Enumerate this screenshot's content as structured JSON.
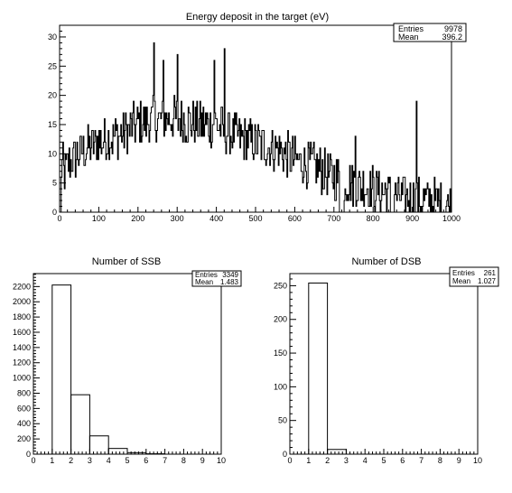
{
  "chart_data": [
    {
      "id": "energy",
      "type": "line",
      "title": "Energy deposit in the target (eV)",
      "xlabel": "",
      "ylabel": "",
      "xlim": [
        0,
        1000
      ],
      "ylim": [
        0,
        32
      ],
      "xticks": [
        0,
        100,
        200,
        300,
        400,
        500,
        600,
        700,
        800,
        900,
        1000
      ],
      "yticks": [
        0,
        5,
        10,
        15,
        20,
        25,
        30
      ],
      "stats": {
        "entries_label": "Entries",
        "entries": "9978",
        "mean_label": "Mean",
        "mean": "396.2"
      },
      "profile": [
        [
          0,
          4
        ],
        [
          20,
          8
        ],
        [
          50,
          10
        ],
        [
          100,
          12
        ],
        [
          150,
          13
        ],
        [
          200,
          15
        ],
        [
          250,
          16
        ],
        [
          300,
          16
        ],
        [
          350,
          15
        ],
        [
          400,
          15
        ],
        [
          450,
          13
        ],
        [
          500,
          12
        ],
        [
          550,
          11
        ],
        [
          600,
          9
        ],
        [
          650,
          8
        ],
        [
          700,
          6
        ],
        [
          750,
          5
        ],
        [
          800,
          4
        ],
        [
          850,
          3
        ],
        [
          900,
          2
        ],
        [
          950,
          2
        ],
        [
          1000,
          1
        ]
      ],
      "noise_amp": 4,
      "zero_bins": [
        [
          0,
          2
        ],
        [
          715,
          725
        ],
        [
          845,
          852
        ]
      ],
      "peaks": [
        [
          8,
          12
        ],
        [
          240,
          29
        ],
        [
          264,
          26
        ],
        [
          300,
          27
        ],
        [
          420,
          28
        ],
        [
          395,
          26
        ],
        [
          910,
          19
        ],
        [
          755,
          13
        ]
      ]
    },
    {
      "id": "ssb",
      "type": "bar",
      "title": "Number of SSB",
      "xlabel": "",
      "ylabel": "",
      "xlim": [
        0,
        10
      ],
      "ylim": [
        0,
        2370
      ],
      "xticks": [
        0,
        1,
        2,
        3,
        4,
        5,
        6,
        7,
        8,
        9,
        10
      ],
      "yticks": [
        0,
        200,
        400,
        600,
        800,
        1000,
        1200,
        1400,
        1600,
        1800,
        2000,
        2200
      ],
      "categories": [
        "0",
        "1",
        "2",
        "3",
        "4",
        "5",
        "6",
        "7",
        "8",
        "9"
      ],
      "values": [
        0,
        2220,
        780,
        240,
        75,
        20,
        5,
        0,
        0,
        0
      ],
      "stats": {
        "entries_label": "Entries",
        "entries": "3349",
        "mean_label": "Mean",
        "mean": "1.483"
      }
    },
    {
      "id": "dsb",
      "type": "bar",
      "title": "Number of DSB",
      "xlabel": "",
      "ylabel": "",
      "xlim": [
        0,
        10
      ],
      "ylim": [
        0,
        268
      ],
      "xticks": [
        0,
        1,
        2,
        3,
        4,
        5,
        6,
        7,
        8,
        9,
        10
      ],
      "yticks": [
        0,
        50,
        100,
        150,
        200,
        250
      ],
      "categories": [
        "0",
        "1",
        "2",
        "3",
        "4",
        "5",
        "6",
        "7",
        "8",
        "9"
      ],
      "values": [
        0,
        254,
        7,
        0,
        0,
        0,
        0,
        0,
        0,
        0
      ],
      "stats": {
        "entries_label": "Entries",
        "entries": "261",
        "mean_label": "Mean",
        "mean": "1.027"
      }
    }
  ]
}
